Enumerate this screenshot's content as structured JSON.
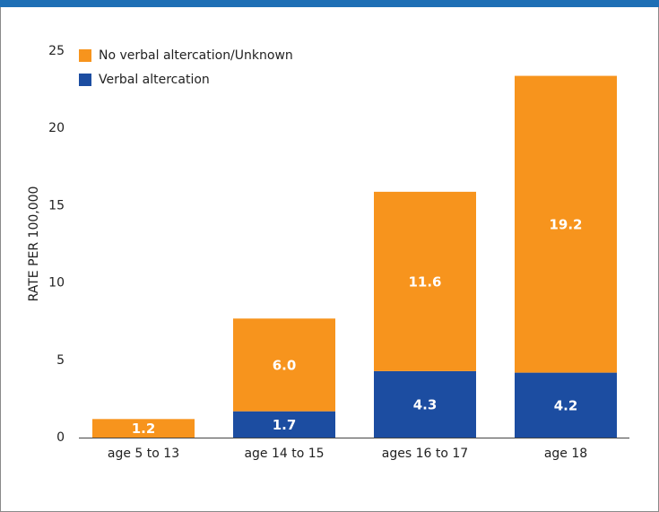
{
  "chart_data": {
    "type": "stacked-bar",
    "y_label": "RATE PER 100,000",
    "categories": [
      "age 5 to 13",
      "age 14 to 15",
      "ages 16 to 17",
      "age 18"
    ],
    "series": [
      {
        "name": "Verbal altercation",
        "color": "#1c4da1",
        "values": [
          null,
          1.7,
          4.3,
          4.2
        ],
        "value_labels": [
          null,
          "1.7",
          "4.3",
          "4.2"
        ]
      },
      {
        "name": "No verbal altercation/Unknown",
        "color": "#f7941d",
        "values": [
          1.2,
          6.0,
          11.6,
          19.2
        ],
        "value_labels": [
          "1.2",
          "6.0",
          "11.6",
          "19.2"
        ]
      }
    ],
    "ylim": [
      0,
      25
    ],
    "yticks": [
      0,
      5,
      10,
      15,
      20,
      25
    ],
    "grid": false
  }
}
